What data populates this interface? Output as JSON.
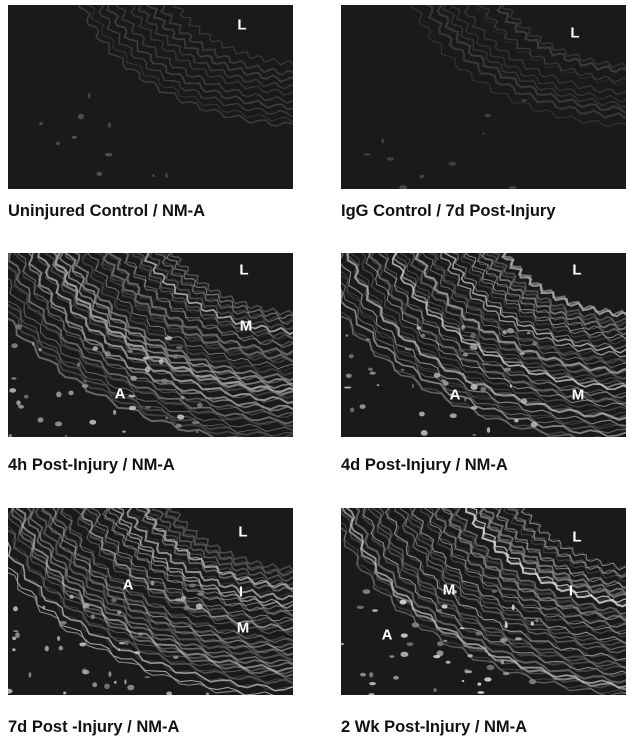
{
  "panels": [
    {
      "caption": "Uninjured Control / NM-A",
      "markers": [
        "L"
      ],
      "intensity": 0.25
    },
    {
      "caption": "IgG Control / 7d Post-Injury",
      "markers": [
        "L"
      ],
      "intensity": 0.15
    },
    {
      "caption": "4h Post-Injury / NM-A",
      "markers": [
        "L",
        "M",
        "A"
      ],
      "intensity": 0.8
    },
    {
      "caption": "4d Post-Injury / NM-A",
      "markers": [
        "L",
        "A",
        "M"
      ],
      "intensity": 0.8
    },
    {
      "caption": "7d Post -Injury / NM-A",
      "markers": [
        "L",
        "I",
        "A",
        "M"
      ],
      "intensity": 0.8
    },
    {
      "caption": "2 Wk Post-Injury / NM-A",
      "markers": [
        "L",
        "M",
        "I",
        "A"
      ],
      "intensity": 0.9
    }
  ]
}
